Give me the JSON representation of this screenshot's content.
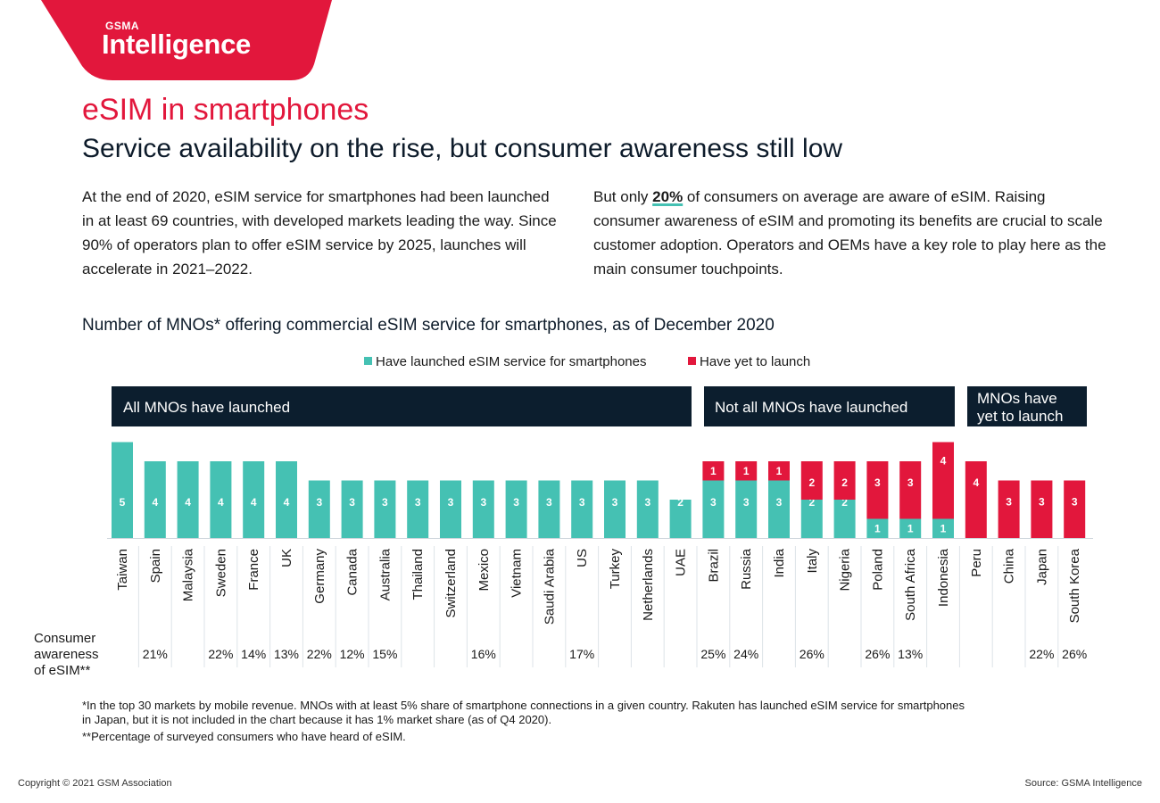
{
  "brand": {
    "small": "GSMA",
    "big": "Intelligence"
  },
  "header": {
    "title": "eSIM in smartphones",
    "subtitle": "Service availability on the rise, but consumer awareness still low"
  },
  "paragraphs": {
    "left": "At the end of 2020, eSIM service for smartphones had been launched in at least 69 countries, with developed markets leading the way. Since 90% of operators plan to offer eSIM service by 2025, launches will accelerate in 2021–2022.",
    "right_before": "But only ",
    "right_highlight": "20%",
    "right_after": " of consumers on average are aware of eSIM. Raising consumer awareness of eSIM and promoting its benefits are crucial to scale customer adoption. Operators and OEMs have a key role to play here as the main consumer touchpoints."
  },
  "groups": {
    "all": "All MNOs have launched",
    "notall": "Not all MNOs have launched",
    "yet_line1": "MNOs have",
    "yet_line2": "yet to launch"
  },
  "awareness_label": {
    "line1": "Consumer",
    "line2": "awareness",
    "line3": "of eSIM**"
  },
  "footnotes": {
    "note1_line1": "*In the top 30 markets by mobile revenue. MNOs with at least 5% share of smartphone connections in a given country. Rakuten has launched eSIM service for smartphones",
    "note1_line2": "in Japan, but it is not included in the chart because it has 1% market share (as of Q4 2020).",
    "note2": "**Percentage of surveyed consumers who have heard of eSIM."
  },
  "footer": {
    "copyright": "Copyright © 2021 GSM Association",
    "source": "Source: GSMA Intelligence"
  },
  "colors": {
    "launched": "#45c1b3",
    "yet": "#e2173c",
    "navy": "#0c1e2e",
    "brand_red": "#e2173c"
  },
  "chart_data": {
    "type": "bar",
    "stacked": true,
    "title": "Number of MNOs* offering commercial eSIM service for smartphones, as of December 2020",
    "legend": "top-center",
    "categories": [
      "Taiwan",
      "Spain",
      "Malaysia",
      "Sweden",
      "France",
      "UK",
      "Germany",
      "Canada",
      "Australia",
      "Thailand",
      "Switzerland",
      "Mexico",
      "Vietnam",
      "Saudi Arabia",
      "US",
      "Turkey",
      "Netherlands",
      "UAE",
      "Brazil",
      "Russia",
      "India",
      "Italy",
      "Nigeria",
      "Poland",
      "South Africa",
      "Indonesia",
      "Peru",
      "China",
      "Japan",
      "South Korea"
    ],
    "series": [
      {
        "name": "Have launched eSIM service for smartphones",
        "color": "#45c1b3",
        "values": [
          5,
          4,
          4,
          4,
          4,
          4,
          3,
          3,
          3,
          3,
          3,
          3,
          3,
          3,
          3,
          3,
          3,
          2,
          3,
          3,
          3,
          2,
          2,
          1,
          1,
          1,
          0,
          0,
          0,
          0
        ]
      },
      {
        "name": "Have yet to launch",
        "color": "#e2173c",
        "values": [
          0,
          0,
          0,
          0,
          0,
          0,
          0,
          0,
          0,
          0,
          0,
          0,
          0,
          0,
          0,
          0,
          0,
          0,
          1,
          1,
          1,
          2,
          2,
          3,
          3,
          4,
          4,
          3,
          3,
          3
        ]
      }
    ],
    "consumer_awareness": [
      "",
      "21%",
      "",
      "22%",
      "14%",
      "13%",
      "22%",
      "12%",
      "15%",
      "",
      "",
      "16%",
      "",
      "",
      "17%",
      "",
      "",
      "",
      "25%",
      "24%",
      "",
      "26%",
      "",
      "26%",
      "13%",
      "",
      "",
      "",
      "22%",
      "26%"
    ],
    "ylim": [
      0,
      5
    ]
  }
}
